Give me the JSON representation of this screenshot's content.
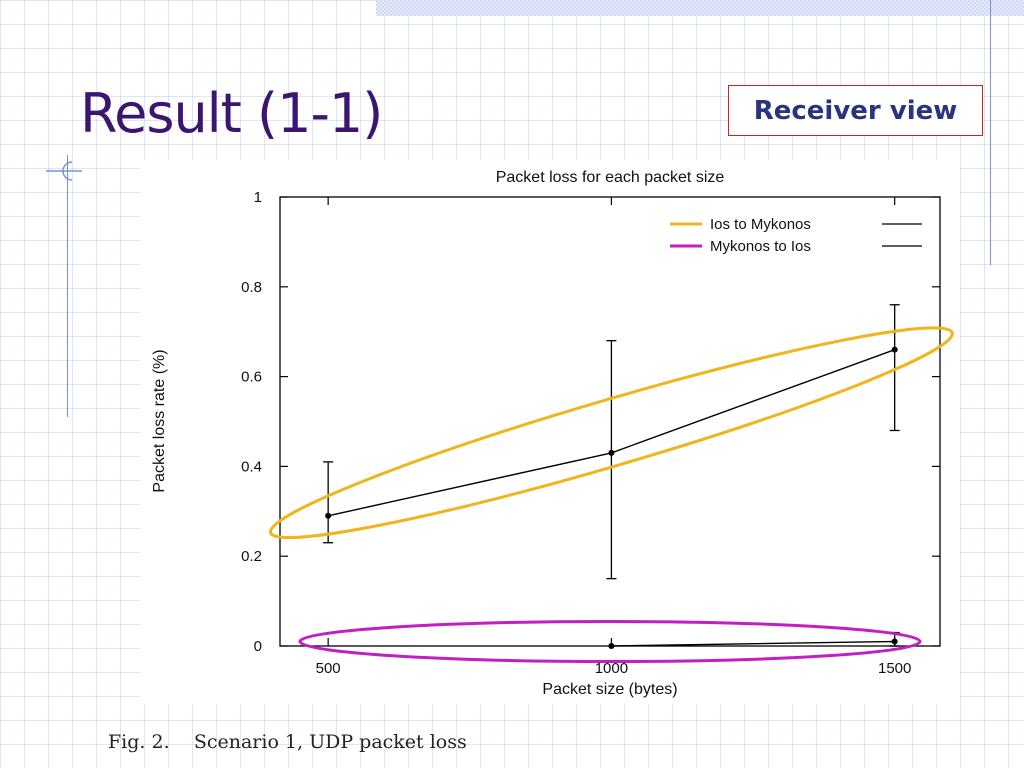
{
  "slide": {
    "title": "Result (1-1)",
    "tag": "Receiver view",
    "caption_number": "Fig. 2.",
    "caption_text": "Scenario 1, UDP packet loss"
  },
  "colors": {
    "title": "#3b1570",
    "tag_text": "#27357f",
    "tag_border": "#cc2222",
    "highlight_series1": "#f0b51c",
    "highlight_series2": "#c21fc2",
    "plot_line": "#000000"
  },
  "chart_data": {
    "type": "line",
    "title": "Packet loss for each packet size",
    "xlabel": "Packet size (bytes)",
    "ylabel": "Packet loss rate (%)",
    "xlim": [
      415,
      1580
    ],
    "ylim": [
      0,
      1
    ],
    "xticks": [
      500,
      1000,
      1500
    ],
    "yticks": [
      0,
      0.2,
      0.4,
      0.6,
      0.8,
      1
    ],
    "ytick_labels": [
      "0",
      "0.2",
      "0.4",
      "0.6",
      "0.8",
      "1"
    ],
    "grid": false,
    "legend_position": "top-right",
    "series": [
      {
        "name": "Ios to Mykonos",
        "x": [
          500,
          1000,
          1500
        ],
        "y": [
          0.29,
          0.43,
          0.66
        ],
        "err_low": [
          0.23,
          0.15,
          0.48
        ],
        "err_high": [
          0.41,
          0.68,
          0.76
        ],
        "legend_swatch": "#f0b51c"
      },
      {
        "name": "Mykonos to Ios",
        "x": [
          1000,
          1500
        ],
        "y": [
          0.0,
          0.01
        ],
        "err_low": [
          0.0,
          0.0
        ],
        "err_high": [
          0.0,
          0.03
        ],
        "legend_swatch": "#c21fc2"
      }
    ]
  }
}
